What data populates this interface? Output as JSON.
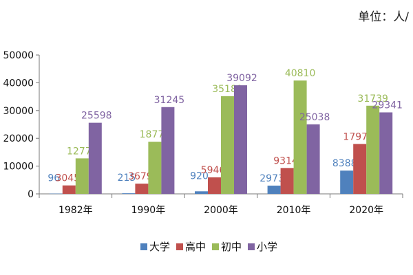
{
  "unit_label": "单位：人/",
  "colors": {
    "大学": "#4f81bd",
    "高中": "#c0504d",
    "初中": "#9bbb59",
    "小学": "#8064a2"
  },
  "chart_data": {
    "type": "bar",
    "categories": [
      "1982年",
      "1990年",
      "2000年",
      "2010年",
      "2020年"
    ],
    "series": [
      {
        "name": "大学",
        "values": [
          96,
          215,
          920,
          2973,
          8388
        ]
      },
      {
        "name": "高中",
        "values": [
          3045,
          3679,
          5946,
          9314,
          17979
        ]
      },
      {
        "name": "初中",
        "values": [
          12779,
          18778,
          35181,
          40810,
          31739
        ]
      },
      {
        "name": "小学",
        "values": [
          25598,
          31245,
          39092,
          25038,
          29341
        ]
      }
    ],
    "ylim": [
      0,
      50000
    ],
    "yticks": [
      0,
      10000,
      20000,
      30000,
      40000,
      50000
    ],
    "legend_position": "bottom",
    "grid": false
  }
}
